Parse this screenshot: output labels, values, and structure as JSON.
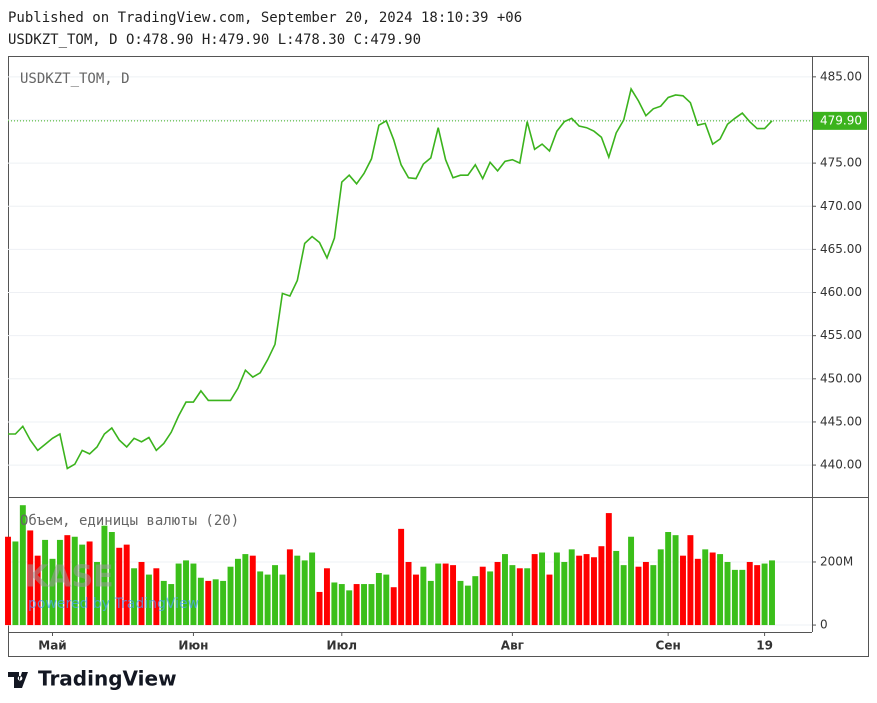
{
  "header": {
    "published": "Published on TradingView.com, September 20, 2024 18:10:39 +06",
    "ohlc": "USDKZT_TOM, D O:478.90 H:479.90 L:478.30 C:479.90"
  },
  "watermark": {
    "logo": "KASE",
    "powered": "powered by TradingView"
  },
  "footer": {
    "brand": "TradingView"
  },
  "chart_data": [
    {
      "type": "line",
      "categories": [
        null,
        null,
        null,
        null,
        null,
        null,
        "Май",
        null,
        null,
        null,
        null,
        null,
        null,
        null,
        null,
        null,
        null,
        null,
        null,
        null,
        null,
        null,
        null,
        null,
        null,
        "Июн",
        null,
        null,
        null,
        null,
        null,
        null,
        null,
        null,
        null,
        null,
        null,
        null,
        null,
        null,
        null,
        null,
        null,
        null,
        null,
        "Июл",
        null,
        null,
        null,
        null,
        null,
        null,
        null,
        null,
        null,
        null,
        null,
        null,
        null,
        null,
        null,
        null,
        null,
        null,
        null,
        null,
        null,
        null,
        "Авг",
        null,
        null,
        null,
        null,
        null,
        null,
        null,
        null,
        null,
        null,
        null,
        null,
        null,
        null,
        null,
        null,
        null,
        null,
        null,
        null,
        "Сен",
        null,
        null,
        null,
        null,
        null,
        null,
        null,
        null,
        null,
        null,
        null,
        null,
        "19",
        null
      ],
      "series": [
        {
          "name": "USDKZT_TOM, D",
          "color": "#3bb31d",
          "values": [
            443.6,
            443.6,
            444.5,
            442.9,
            441.7,
            442.4,
            443.1,
            443.6,
            439.6,
            440.1,
            441.7,
            441.3,
            442.1,
            443.6,
            444.3,
            442.9,
            442.1,
            443.1,
            442.7,
            443.2,
            441.7,
            442.5,
            443.8,
            445.7,
            447.3,
            447.3,
            448.6,
            447.5,
            447.5,
            447.5,
            447.5,
            448.9,
            451.0,
            450.2,
            450.7,
            452.2,
            454.0,
            459.9,
            459.6,
            461.4,
            465.7,
            466.5,
            465.8,
            464.0,
            466.3,
            472.8,
            473.6,
            472.6,
            473.8,
            475.5,
            479.4,
            479.9,
            477.7,
            474.8,
            473.3,
            473.2,
            474.9,
            475.6,
            479.1,
            475.4,
            473.3,
            473.6,
            473.6,
            474.8,
            473.2,
            475.1,
            474.1,
            475.2,
            475.4,
            475.0,
            479.8,
            476.6,
            477.2,
            476.4,
            478.7,
            479.8,
            480.2,
            479.3,
            479.1,
            478.7,
            478.0,
            475.7,
            478.5,
            480.0,
            483.6,
            482.2,
            480.5,
            481.3,
            481.6,
            482.6,
            482.9,
            482.8,
            482.0,
            479.4,
            479.6,
            477.2,
            477.8,
            479.5,
            480.2,
            480.8,
            479.8,
            479.0,
            479.0,
            479.9
          ]
        }
      ],
      "last_price": {
        "value": 479.9,
        "label": "479.90"
      },
      "ylim": [
        436.3,
        487.3
      ],
      "yticks": [
        {
          "value": 440,
          "label": "440.00"
        },
        {
          "value": 445,
          "label": "445.00"
        },
        {
          "value": 450,
          "label": "450.00"
        },
        {
          "value": 455,
          "label": "455.00"
        },
        {
          "value": 460,
          "label": "460.00"
        },
        {
          "value": 465,
          "label": "465.00"
        },
        {
          "value": 470,
          "label": "470.00"
        },
        {
          "value": 475,
          "label": "475.00"
        },
        {
          "value": 480,
          "label": "480.00"
        },
        {
          "value": 485,
          "label": "485.00"
        }
      ],
      "grid": true
    },
    {
      "type": "bar",
      "series": [
        {
          "name": "Объем, единицы валюты (20)",
          "up_color": "#3bbf1a",
          "down_color": "#ff0000",
          "values": [
            280,
            265,
            380,
            300,
            220,
            270,
            210,
            270,
            285,
            280,
            255,
            265,
            200,
            315,
            295,
            245,
            255,
            180,
            200,
            160,
            180,
            140,
            130,
            195,
            205,
            195,
            150,
            140,
            145,
            140,
            185,
            210,
            225,
            220,
            170,
            160,
            190,
            160,
            240,
            220,
            205,
            230,
            105,
            180,
            135,
            130,
            110,
            130,
            130,
            130,
            165,
            160,
            120,
            305,
            200,
            160,
            185,
            140,
            195,
            195,
            190,
            140,
            125,
            155,
            185,
            170,
            200,
            225,
            190,
            180,
            180,
            225,
            230,
            160,
            230,
            200,
            240,
            220,
            225,
            215,
            250,
            355,
            235,
            190,
            280,
            185,
            200,
            190,
            240,
            295,
            285,
            220,
            285,
            210,
            240,
            230,
            225,
            200,
            175,
            175,
            200,
            190,
            195,
            205
          ]
        }
      ],
      "ylim": [
        -22,
        406
      ],
      "yticks": [
        0,
        {
          "value": 200,
          "label": "200M"
        }
      ],
      "grid": true
    }
  ]
}
